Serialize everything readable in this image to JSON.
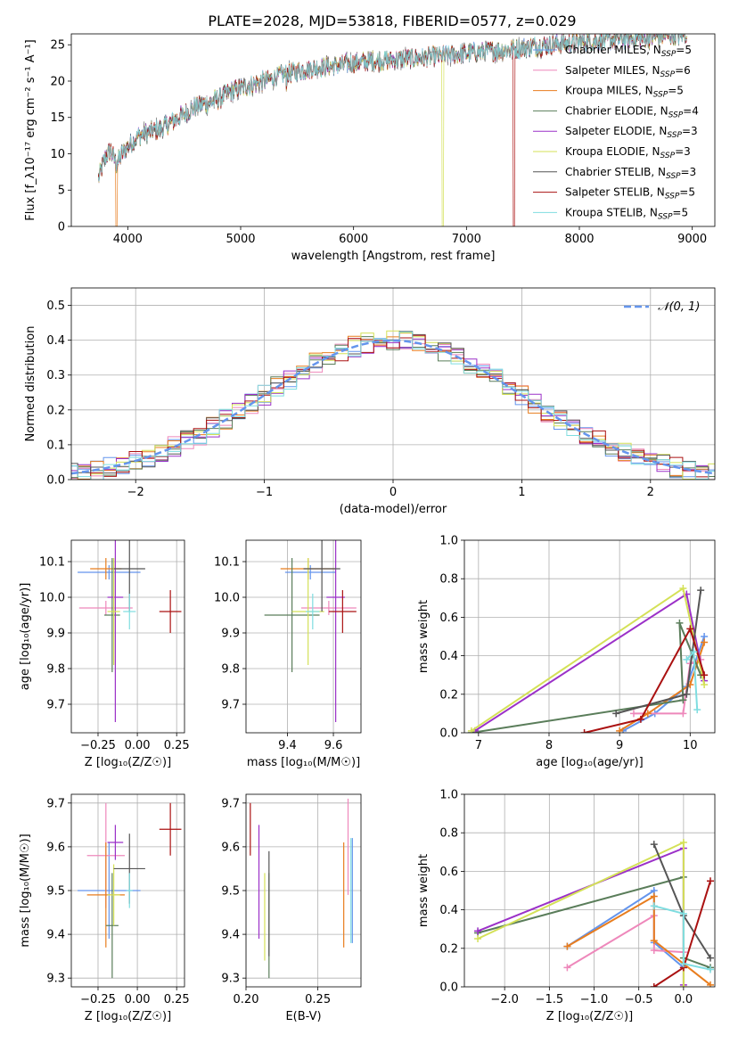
{
  "title": "PLATE=2028, MJD=53818, FIBERID=0577, z=0.029",
  "colors": {
    "Chabrier MILES": "#6495ed",
    "Salpeter MILES": "#ee88bb",
    "Kroupa MILES": "#e87d1e",
    "Chabrier ELODIE": "#5a7d5a",
    "Salpeter ELODIE": "#9b30c8",
    "Kroupa ELODIE": "#d4e157",
    "Chabrier STELIB": "#555555",
    "Salpeter STELIB": "#aa1111",
    "Kroupa STELIB": "#7fdde0"
  },
  "chart_data": [
    {
      "id": "spectrum",
      "type": "line",
      "title": "PLATE=2028, MJD=53818, FIBERID=0577, z=0.029",
      "xlabel": "wavelength [Angstrom, rest frame]",
      "ylabel": "Flux [f_λ10⁻¹⁷ erg cm⁻² s⁻¹ A⁻¹]",
      "xlim": [
        3500,
        9200
      ],
      "ylim": [
        0,
        26.5
      ],
      "xticks": [
        4000,
        5000,
        6000,
        7000,
        8000,
        9000
      ],
      "yticks": [
        0,
        5,
        10,
        15,
        20,
        25
      ],
      "legend_position": "right",
      "legend": [
        {
          "name": "Chabrier MILES",
          "nssp": "5"
        },
        {
          "name": "Salpeter MILES",
          "nssp": "6"
        },
        {
          "name": "Kroupa MILES",
          "nssp": "5"
        },
        {
          "name": "Chabrier ELODIE",
          "nssp": "4"
        },
        {
          "name": "Salpeter ELODIE",
          "nssp": "3"
        },
        {
          "name": "Kroupa ELODIE",
          "nssp": "3"
        },
        {
          "name": "Chabrier STELIB",
          "nssp": "3"
        },
        {
          "name": "Salpeter STELIB",
          "nssp": "5"
        },
        {
          "name": "Kroupa STELIB",
          "nssp": "5"
        }
      ],
      "continuum": [
        [
          3740,
          6.5
        ],
        [
          3800,
          9.5
        ],
        [
          3850,
          10.5
        ],
        [
          3900,
          8.5
        ],
        [
          3950,
          10
        ],
        [
          4000,
          11
        ],
        [
          4100,
          12.5
        ],
        [
          4200,
          13
        ],
        [
          4300,
          13.5
        ],
        [
          4400,
          14.5
        ],
        [
          4500,
          15.5
        ],
        [
          4600,
          16.5
        ],
        [
          4700,
          17
        ],
        [
          4800,
          17.5
        ],
        [
          4900,
          18.5
        ],
        [
          5000,
          19
        ],
        [
          5100,
          19.5
        ],
        [
          5200,
          20
        ],
        [
          5300,
          20.5
        ],
        [
          5400,
          21
        ],
        [
          5500,
          21.3
        ],
        [
          5600,
          21.7
        ],
        [
          5800,
          22
        ],
        [
          6000,
          22.5
        ],
        [
          6200,
          22.8
        ],
        [
          6400,
          23
        ],
        [
          6600,
          23.2
        ],
        [
          6800,
          23.5
        ],
        [
          7000,
          23.8
        ],
        [
          7200,
          24.1
        ],
        [
          7400,
          24.4
        ],
        [
          7600,
          24.8
        ],
        [
          7800,
          25.1
        ],
        [
          8000,
          25.4
        ],
        [
          8200,
          25.6
        ],
        [
          8400,
          25.8
        ],
        [
          8600,
          26
        ],
        [
          8800,
          26.3
        ],
        [
          8950,
          26.5
        ]
      ],
      "dropouts": [
        {
          "model": "Kroupa MILES",
          "x": 3900
        },
        {
          "model": "Kroupa ELODIE",
          "x": 6790
        },
        {
          "model": "Salpeter STELIB",
          "x": 7420
        }
      ]
    },
    {
      "id": "residuals",
      "type": "bar",
      "xlabel": "(data-model)/error",
      "ylabel": "Normed distribution",
      "xlim": [
        -2.5,
        2.5
      ],
      "ylim": [
        0,
        0.55
      ],
      "xticks": [
        -2,
        -1,
        0,
        1,
        2
      ],
      "yticks": [
        0.0,
        0.1,
        0.2,
        0.3,
        0.4,
        0.5
      ],
      "bin_width": 0.1,
      "legend_position": "top-right",
      "reference": {
        "name": "𝒩(0, 1)",
        "mean": 0,
        "sigma": 1,
        "style": "dashed"
      }
    },
    {
      "id": "age-vs-z",
      "type": "scatter",
      "xlabel": "Z [log₁₀(Z/Z☉)]",
      "ylabel": "age  [log₁₀(age/yr)]",
      "xlim": [
        -0.42,
        0.3
      ],
      "ylim": [
        9.62,
        10.16
      ],
      "xticks": [
        -0.25,
        0.0,
        0.25
      ],
      "yticks": [
        9.7,
        9.8,
        9.9,
        10.0,
        10.1
      ],
      "points": [
        {
          "model": "Chabrier MILES",
          "x": -0.18,
          "xerr": 0.2,
          "y": 10.07,
          "yerr": 0.02
        },
        {
          "model": "Salpeter MILES",
          "x": -0.2,
          "xerr": 0.17,
          "y": 9.97,
          "yerr": 0.02
        },
        {
          "model": "Kroupa MILES",
          "x": -0.2,
          "xerr": 0.1,
          "y": 10.08,
          "yerr": 0.03
        },
        {
          "model": "Chabrier ELODIE",
          "x": -0.16,
          "xerr": 0.05,
          "y": 9.95,
          "yerr": 0.16
        },
        {
          "model": "Salpeter ELODIE",
          "x": -0.14,
          "xerr": 0.05,
          "y": 10.0,
          "yerr": 0.35
        },
        {
          "model": "Kroupa ELODIE",
          "x": -0.15,
          "xerr": 0.04,
          "y": 9.96,
          "yerr": 0.15
        },
        {
          "model": "Chabrier STELIB",
          "x": -0.05,
          "xerr": 0.1,
          "y": 10.08,
          "yerr": 0.12
        },
        {
          "model": "Salpeter STELIB",
          "x": 0.21,
          "xerr": 0.07,
          "y": 9.96,
          "yerr": 0.06
        },
        {
          "model": "Kroupa STELIB",
          "x": -0.05,
          "xerr": 0.04,
          "y": 9.96,
          "yerr": 0.05
        }
      ]
    },
    {
      "id": "age-vs-mass",
      "type": "scatter",
      "xlabel": "mass [log₁₀(M/M☉)]",
      "ylabel": "",
      "xlim": [
        9.22,
        9.72
      ],
      "ylim": [
        9.62,
        10.16
      ],
      "xticks": [
        9.4,
        9.6
      ],
      "yticks": [
        9.7,
        9.8,
        9.9,
        10.0,
        10.1
      ],
      "points": [
        {
          "model": "Chabrier MILES",
          "x": 9.5,
          "xerr": 0.11,
          "y": 10.07,
          "yerr": 0.02
        },
        {
          "model": "Salpeter MILES",
          "x": 9.58,
          "xerr": 0.12,
          "y": 9.97,
          "yerr": 0.02
        },
        {
          "model": "Kroupa MILES",
          "x": 9.49,
          "xerr": 0.12,
          "y": 10.08,
          "yerr": 0.03
        },
        {
          "model": "Chabrier ELODIE",
          "x": 9.42,
          "xerr": 0.12,
          "y": 9.95,
          "yerr": 0.16
        },
        {
          "model": "Salpeter ELODIE",
          "x": 9.61,
          "xerr": 0.04,
          "y": 10.0,
          "yerr": 0.35
        },
        {
          "model": "Kroupa ELODIE",
          "x": 9.49,
          "xerr": 0.07,
          "y": 9.96,
          "yerr": 0.15
        },
        {
          "model": "Chabrier STELIB",
          "x": 9.55,
          "xerr": 0.08,
          "y": 10.08,
          "yerr": 0.12
        },
        {
          "model": "Salpeter STELIB",
          "x": 9.64,
          "xerr": 0.06,
          "y": 9.96,
          "yerr": 0.06
        },
        {
          "model": "Kroupa STELIB",
          "x": 9.51,
          "xerr": 0.03,
          "y": 9.96,
          "yerr": 0.05
        }
      ]
    },
    {
      "id": "weight-vs-age",
      "type": "line",
      "xlabel": "age  [log₁₀(age/yr)]",
      "ylabel": "mass weight",
      "xlim": [
        6.8,
        10.35
      ],
      "ylim": [
        0,
        1
      ],
      "xticks": [
        7,
        8,
        9,
        10
      ],
      "yticks": [
        0.0,
        0.2,
        0.4,
        0.6,
        0.8,
        1.0
      ],
      "series": [
        {
          "model": "Chabrier MILES",
          "points": [
            [
              9.05,
              0.01
            ],
            [
              9.5,
              0.1
            ],
            [
              9.95,
              0.24
            ],
            [
              10.2,
              0.5
            ]
          ]
        },
        {
          "model": "Salpeter MILES",
          "points": [
            [
              9.2,
              0.1
            ],
            [
              9.9,
              0.1
            ],
            [
              10.0,
              0.36
            ],
            [
              10.15,
              0.38
            ]
          ]
        },
        {
          "model": "Kroupa MILES",
          "points": [
            [
              9.0,
              0.01
            ],
            [
              9.4,
              0.1
            ],
            [
              10.0,
              0.25
            ],
            [
              10.2,
              0.47
            ]
          ]
        },
        {
          "model": "Chabrier ELODIE",
          "points": [
            [
              6.9,
              0.0
            ],
            [
              9.9,
              0.17
            ],
            [
              9.85,
              0.57
            ],
            [
              10.15,
              0.3
            ]
          ]
        },
        {
          "model": "Salpeter ELODIE",
          "points": [
            [
              6.95,
              0.01
            ],
            [
              9.95,
              0.72
            ],
            [
              10.2,
              0.27
            ]
          ]
        },
        {
          "model": "Kroupa ELODIE",
          "points": [
            [
              6.9,
              0.01
            ],
            [
              9.9,
              0.75
            ],
            [
              10.2,
              0.25
            ]
          ]
        },
        {
          "model": "Chabrier STELIB",
          "points": [
            [
              8.95,
              0.1
            ],
            [
              9.95,
              0.2
            ],
            [
              10.15,
              0.74
            ]
          ]
        },
        {
          "model": "Salpeter STELIB",
          "points": [
            [
              8.5,
              0.0
            ],
            [
              9.3,
              0.07
            ],
            [
              10.0,
              0.54
            ],
            [
              10.2,
              0.3
            ]
          ]
        },
        {
          "model": "Kroupa STELIB",
          "points": [
            [
              9.95,
              0.38
            ],
            [
              10.05,
              0.42
            ],
            [
              10.1,
              0.12
            ]
          ]
        }
      ]
    },
    {
      "id": "mass-vs-z",
      "type": "scatter",
      "xlabel": "Z [log₁₀(Z/Z☉)]",
      "ylabel": "mass [log₁₀(M/M☉)]",
      "xlim": [
        -0.42,
        0.3
      ],
      "ylim": [
        9.28,
        9.72
      ],
      "xticks": [
        -0.25,
        0.0,
        0.25
      ],
      "yticks": [
        9.3,
        9.4,
        9.5,
        9.6,
        9.7
      ],
      "points": [
        {
          "model": "Chabrier MILES",
          "x": -0.18,
          "xerr": 0.2,
          "y": 9.5,
          "yerr": 0.11
        },
        {
          "model": "Salpeter MILES",
          "x": -0.2,
          "xerr": 0.12,
          "y": 9.58,
          "yerr": 0.12
        },
        {
          "model": "Kroupa MILES",
          "x": -0.2,
          "xerr": 0.12,
          "y": 9.49,
          "yerr": 0.12
        },
        {
          "model": "Chabrier ELODIE",
          "x": -0.16,
          "xerr": 0.04,
          "y": 9.42,
          "yerr": 0.12
        },
        {
          "model": "Salpeter ELODIE",
          "x": -0.14,
          "xerr": 0.05,
          "y": 9.61,
          "yerr": 0.04
        },
        {
          "model": "Kroupa ELODIE",
          "x": -0.15,
          "xerr": 0.04,
          "y": 9.49,
          "yerr": 0.07
        },
        {
          "model": "Chabrier STELIB",
          "x": -0.05,
          "xerr": 0.1,
          "y": 9.55,
          "yerr": 0.08
        },
        {
          "model": "Salpeter STELIB",
          "x": 0.21,
          "xerr": 0.07,
          "y": 9.64,
          "yerr": 0.06
        },
        {
          "model": "Kroupa STELIB",
          "x": -0.05,
          "xerr": 0.02,
          "y": 9.5,
          "yerr": 0.04
        }
      ]
    },
    {
      "id": "mass-vs-ebv",
      "type": "scatter",
      "xlabel": "E(B-V)",
      "ylabel": "",
      "xlim": [
        0.2,
        0.28
      ],
      "ylim": [
        9.28,
        9.72
      ],
      "xticks": [
        0.2,
        0.25
      ],
      "yticks": [
        9.3,
        9.4,
        9.5,
        9.6,
        9.7
      ],
      "points": [
        {
          "model": "Chabrier MILES",
          "x": 0.274,
          "y": 9.5,
          "yerr": 0.12
        },
        {
          "model": "Salpeter MILES",
          "x": 0.271,
          "y": 9.6,
          "yerr": 0.11
        },
        {
          "model": "Kroupa MILES",
          "x": 0.268,
          "y": 9.49,
          "yerr": 0.12
        },
        {
          "model": "Chabrier ELODIE",
          "x": 0.216,
          "y": 9.42,
          "yerr": 0.12
        },
        {
          "model": "Salpeter ELODIE",
          "x": 0.209,
          "y": 9.52,
          "yerr": 0.13
        },
        {
          "model": "Kroupa ELODIE",
          "x": 0.213,
          "y": 9.44,
          "yerr": 0.1
        },
        {
          "model": "Chabrier STELIB",
          "x": 0.216,
          "y": 9.47,
          "yerr": 0.12
        },
        {
          "model": "Salpeter STELIB",
          "x": 0.203,
          "y": 9.64,
          "yerr": 0.06
        },
        {
          "model": "Kroupa STELIB",
          "x": 0.273,
          "y": 9.5,
          "yerr": 0.12
        }
      ]
    },
    {
      "id": "weight-vs-z",
      "type": "line",
      "xlabel": "Z [log₁₀(Z/Z☉)]",
      "ylabel": "mass weight",
      "xlim": [
        -2.45,
        0.35
      ],
      "ylim": [
        0,
        1
      ],
      "xticks": [
        -2.0,
        -1.5,
        -1.0,
        -0.5,
        0.0
      ],
      "yticks": [
        0.0,
        0.2,
        0.4,
        0.6,
        0.8,
        1.0
      ],
      "series": [
        {
          "model": "Chabrier MILES",
          "points": [
            [
              -1.3,
              0.21
            ],
            [
              -0.33,
              0.5
            ],
            [
              -0.33,
              0.23
            ],
            [
              0.0,
              0.1
            ]
          ]
        },
        {
          "model": "Salpeter MILES",
          "points": [
            [
              -1.3,
              0.1
            ],
            [
              -0.33,
              0.37
            ],
            [
              -0.33,
              0.19
            ],
            [
              0.0,
              0.18
            ]
          ]
        },
        {
          "model": "Kroupa MILES",
          "points": [
            [
              -1.3,
              0.21
            ],
            [
              -0.33,
              0.47
            ],
            [
              -0.33,
              0.24
            ],
            [
              0.3,
              0.01
            ]
          ]
        },
        {
          "model": "Chabrier ELODIE",
          "points": [
            [
              -2.3,
              0.28
            ],
            [
              0.0,
              0.57
            ],
            [
              0.0,
              0.15
            ],
            [
              0.3,
              0.1
            ]
          ]
        },
        {
          "model": "Salpeter ELODIE",
          "points": [
            [
              -2.3,
              0.29
            ],
            [
              0.0,
              0.72
            ],
            [
              0.0,
              0.01
            ]
          ]
        },
        {
          "model": "Kroupa ELODIE",
          "points": [
            [
              -2.3,
              0.25
            ],
            [
              0.0,
              0.75
            ],
            [
              0.0,
              0.0
            ]
          ]
        },
        {
          "model": "Chabrier STELIB",
          "points": [
            [
              -0.33,
              0.74
            ],
            [
              0.0,
              0.37
            ],
            [
              0.3,
              0.15
            ]
          ]
        },
        {
          "model": "Salpeter STELIB",
          "points": [
            [
              -0.33,
              0.0
            ],
            [
              0.0,
              0.1
            ],
            [
              0.3,
              0.55
            ]
          ]
        },
        {
          "model": "Kroupa STELIB",
          "points": [
            [
              -0.33,
              0.42
            ],
            [
              0.0,
              0.38
            ],
            [
              0.0,
              0.12
            ],
            [
              0.3,
              0.09
            ]
          ]
        }
      ]
    }
  ]
}
